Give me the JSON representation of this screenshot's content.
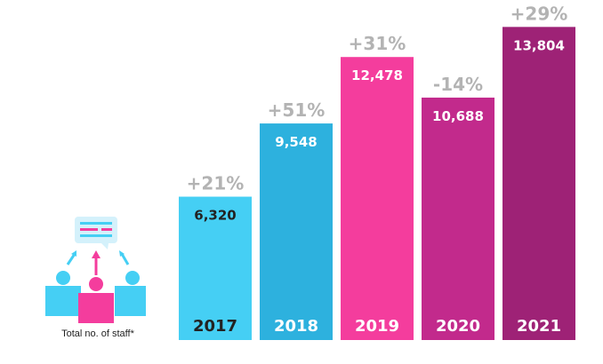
{
  "chart_data": {
    "type": "bar",
    "title": "",
    "xlabel": "",
    "ylabel": "",
    "categories": [
      "2017",
      "2018",
      "2019",
      "2020",
      "2021"
    ],
    "values": [
      6320,
      9548,
      12478,
      10688,
      13804
    ],
    "value_labels": [
      "6,320",
      "9,548",
      "12,478",
      "10,688",
      "13,804"
    ],
    "change_labels": [
      "+21%",
      "+51%",
      "+31%",
      "-14%",
      "+29%"
    ],
    "ylim": [
      0,
      14600
    ],
    "grid": false,
    "colors": [
      "#45cff4",
      "#2db1de",
      "#f43d9d",
      "#c22a8c",
      "#9e2276"
    ],
    "text_colors": [
      "#222222",
      "#ffffff",
      "#ffffff",
      "#ffffff",
      "#ffffff"
    ],
    "change_color": "#b3b3b3"
  },
  "legend": {
    "caption": "Total no. of staff*",
    "icon": "staff-group-icon"
  }
}
